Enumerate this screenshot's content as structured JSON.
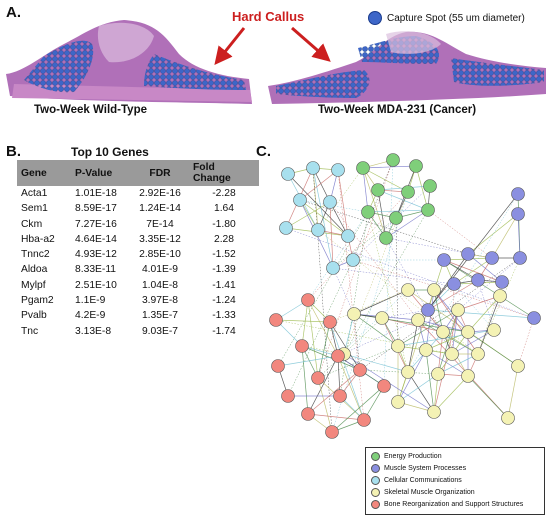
{
  "panels": {
    "a": "A.",
    "b": "B.",
    "c": "C."
  },
  "panel_a": {
    "annotation": "Hard Callus",
    "legend_label": "Capture Spot (55 um diameter)",
    "left_caption": "Two-Week Wild-Type",
    "right_caption": "Two-Week MDA-231 (Cancer)",
    "colors": {
      "tissue": "#b070b8",
      "spot": "#3d66c8",
      "arrow": "#cc1f1f",
      "annotation": "#cc1f1f"
    }
  },
  "panel_b": {
    "title": "Top 10 Genes",
    "columns": [
      "Gene",
      "P-Value",
      "FDR",
      "Fold Change"
    ],
    "rows": [
      [
        "Acta1",
        "1.01E-18",
        "2.92E-16",
        "-2.28"
      ],
      [
        "Sem1",
        "8.59E-17",
        "1.24E-14",
        "1.64"
      ],
      [
        "Ckm",
        "7.27E-16",
        "7E-14",
        "-1.80"
      ],
      [
        "Hba-a2",
        "4.64E-14",
        "3.35E-12",
        "2.28"
      ],
      [
        "Tnnc2",
        "4.93E-12",
        "2.85E-10",
        "-1.52"
      ],
      [
        "Aldoa",
        "8.33E-11",
        "4.01E-9",
        "-1.39"
      ],
      [
        "Mylpf",
        "2.51E-10",
        "1.04E-8",
        "-1.41"
      ],
      [
        "Pgam2",
        "1.1E-9",
        "3.97E-8",
        "-1.24"
      ],
      [
        "Pvalb",
        "4.2E-9",
        "1.35E-7",
        "-1.33"
      ],
      [
        "Tnc",
        "3.13E-8",
        "9.03E-7",
        "-1.74"
      ]
    ],
    "header_color": "#9a9a9a"
  },
  "panel_c": {
    "legend": [
      {
        "label": "Energy Production",
        "color": "#7fcf7a"
      },
      {
        "label": "Muscle System Processes",
        "color": "#8a8fe0"
      },
      {
        "label": "Cellular Communications",
        "color": "#a8e0ee"
      },
      {
        "label": "Skeletal Muscle Organization",
        "color": "#f4f2b4"
      },
      {
        "label": "Bone Reorganization and Support Structures",
        "color": "#f2877e"
      }
    ]
  }
}
